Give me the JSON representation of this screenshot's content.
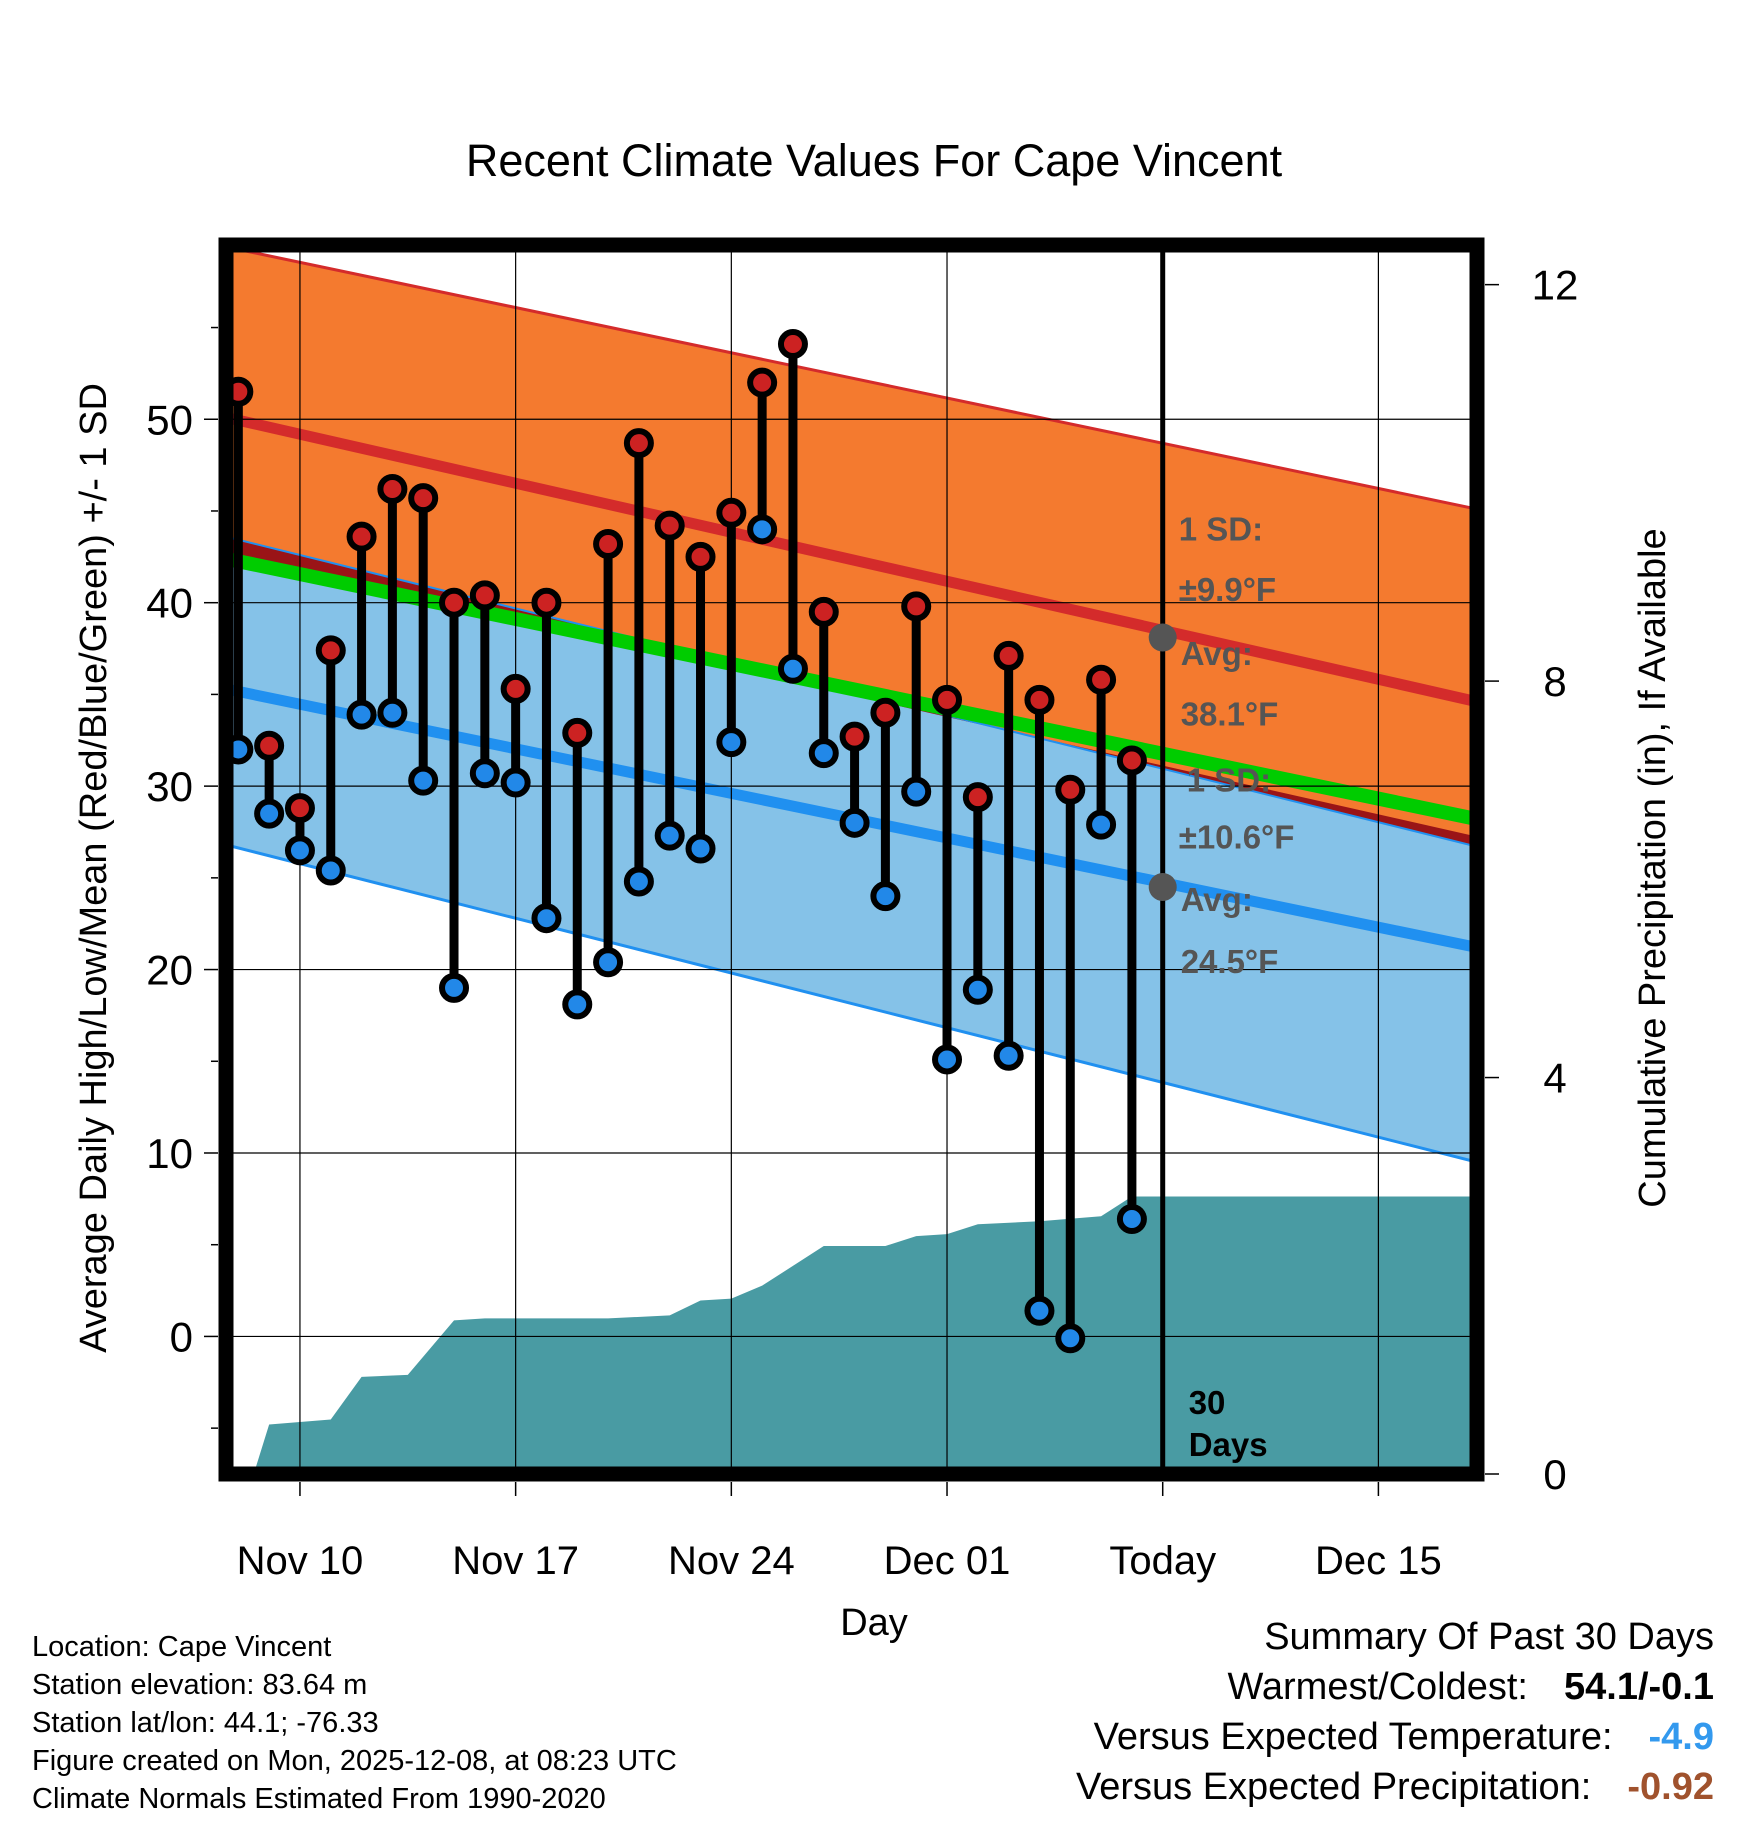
{
  "colors": {
    "high_band": "#f47a2f",
    "high_line": "#d42b2b",
    "mean_band": "#9a1417",
    "mean_line": "#00cc00",
    "low_band": "#85c2e8",
    "low_line": "#2090f0",
    "precip_fill": "#499ba3",
    "high_dot": "#cc2222",
    "low_dot": "#2288e8",
    "cold_anomaly": "#3399ee",
    "dry_anomaly": "#a0522d"
  },
  "chart_data": {
    "type": "line",
    "title": "Recent Climate Values For Cape Vincent",
    "xlabel": "Day",
    "ylabel": "Average Daily High/Low/Mean (Red/Blue/Green) +/- 1 SD",
    "y2label": "Cumulative Precipitation (in), If Available",
    "x_range_days": [
      -30.4,
      10.2
    ],
    "x_ticks": [
      {
        "day": -28,
        "label": "Nov 10"
      },
      {
        "day": -21,
        "label": "Nov 17"
      },
      {
        "day": -14,
        "label": "Nov 24"
      },
      {
        "day": -7,
        "label": "Dec 01"
      },
      {
        "day": 0,
        "label": "Today"
      },
      {
        "day": 7,
        "label": "Dec 15"
      }
    ],
    "ylim": [
      -7.5,
      59.5
    ],
    "y_ticks": [
      0,
      10,
      20,
      30,
      40,
      50
    ],
    "y2lim": [
      0,
      12.4
    ],
    "y2_ticks": [
      0,
      4,
      8,
      12
    ],
    "normal_high": {
      "start": 50.1,
      "end": 34.6,
      "sd_upper_start": 59.4,
      "sd_upper_end": 45.1,
      "sd_lower_start": 43.6,
      "sd_lower_end": 26.7
    },
    "normal_mean": {
      "start": 42.4,
      "end": 28.2
    },
    "normal_low": {
      "start": 35.3,
      "end": 21.2,
      "sd_upper_start": 43.6,
      "sd_upper_end": 26.7,
      "sd_lower_start": 26.8,
      "sd_lower_end": 9.5
    },
    "observations": [
      {
        "day": -30,
        "high": 51.5,
        "low": 32.0
      },
      {
        "day": -29,
        "high": 32.2,
        "low": 28.5
      },
      {
        "day": -28,
        "high": 28.8,
        "low": 26.5
      },
      {
        "day": -27,
        "high": 37.4,
        "low": 25.4
      },
      {
        "day": -26,
        "high": 43.6,
        "low": 33.9
      },
      {
        "day": -25,
        "high": 46.2,
        "low": 34.0
      },
      {
        "day": -24,
        "high": 45.7,
        "low": 30.3
      },
      {
        "day": -23,
        "high": 40.0,
        "low": 19.0
      },
      {
        "day": -22,
        "high": 40.4,
        "low": 30.7
      },
      {
        "day": -21,
        "high": 35.3,
        "low": 30.2
      },
      {
        "day": -20,
        "high": 40.0,
        "low": 22.8
      },
      {
        "day": -19,
        "high": 32.9,
        "low": 18.1
      },
      {
        "day": -18,
        "high": 43.2,
        "low": 20.4
      },
      {
        "day": -17,
        "high": 48.7,
        "low": 24.8
      },
      {
        "day": -16,
        "high": 44.2,
        "low": 27.3
      },
      {
        "day": -15,
        "high": 42.5,
        "low": 26.6
      },
      {
        "day": -14,
        "high": 44.9,
        "low": 32.4
      },
      {
        "day": -13,
        "high": 52.0,
        "low": 44.0
      },
      {
        "day": -12,
        "high": 54.1,
        "low": 36.4
      },
      {
        "day": -11,
        "high": 39.5,
        "low": 31.8
      },
      {
        "day": -10,
        "high": 32.7,
        "low": 28.0
      },
      {
        "day": -9,
        "high": 34.0,
        "low": 24.0
      },
      {
        "day": -8,
        "high": 39.8,
        "low": 29.7
      },
      {
        "day": -7,
        "high": 34.7,
        "low": 15.1
      },
      {
        "day": -6,
        "high": 29.4,
        "low": 18.9
      },
      {
        "day": -5,
        "high": 37.1,
        "low": 15.3
      },
      {
        "day": -4,
        "high": 34.7,
        "low": 1.4
      },
      {
        "day": -3,
        "high": 29.8,
        "low": -0.1
      },
      {
        "day": -2,
        "high": 35.8,
        "low": 27.9
      },
      {
        "day": -1,
        "high": 31.4,
        "low": 6.4
      }
    ],
    "cumulative_precip": [
      {
        "day": -30.4,
        "value": 0.0
      },
      {
        "day": -29.5,
        "value": 0.0
      },
      {
        "day": -29.0,
        "value": 0.5
      },
      {
        "day": -27.0,
        "value": 0.55
      },
      {
        "day": -26.0,
        "value": 0.98
      },
      {
        "day": -24.5,
        "value": 1.0
      },
      {
        "day": -23.0,
        "value": 1.55
      },
      {
        "day": -22.0,
        "value": 1.57
      },
      {
        "day": -18.0,
        "value": 1.57
      },
      {
        "day": -16.0,
        "value": 1.6
      },
      {
        "day": -15.0,
        "value": 1.75
      },
      {
        "day": -14.0,
        "value": 1.77
      },
      {
        "day": -13.0,
        "value": 1.9
      },
      {
        "day": -11.0,
        "value": 2.3
      },
      {
        "day": -9.0,
        "value": 2.3
      },
      {
        "day": -8.0,
        "value": 2.4
      },
      {
        "day": -7.0,
        "value": 2.42
      },
      {
        "day": -6.0,
        "value": 2.52
      },
      {
        "day": -4.0,
        "value": 2.55
      },
      {
        "day": -2.0,
        "value": 2.6
      },
      {
        "day": -1.0,
        "value": 2.8
      },
      {
        "day": 10.2,
        "value": 2.8
      }
    ],
    "today_high_avg": {
      "day": 0,
      "value": 38.1
    },
    "today_low_avg": {
      "day": 0,
      "value": 24.5
    },
    "annotations": {
      "high_sd_line1": "1 SD:",
      "high_sd_line2": "±9.9°F",
      "high_avg_line1": "Avg:",
      "high_avg_line2": "38.1°F",
      "low_sd_line1": "1 SD:",
      "low_sd_line2": "±10.6°F",
      "low_avg_line1": "Avg:",
      "low_avg_line2": "24.5°F",
      "days_line1": "30",
      "days_line2": "Days"
    }
  },
  "info": {
    "location": "Location: Cape Vincent",
    "elevation": "Station elevation: 83.64 m",
    "latlon": "Station lat/lon: 44.1; -76.33",
    "created": "Figure created on Mon, 2025-12-08, at 08:23 UTC",
    "normals": "Climate Normals Estimated From 1990-2020"
  },
  "summary": {
    "title": "Summary Of Past 30 Days",
    "warm_cold_label": "Warmest/Coldest:",
    "warm_cold_value": "54.1/-0.1",
    "temp_label": "Versus Expected Temperature:",
    "temp_value": "-4.9",
    "precip_label": "Versus Expected Precipitation:",
    "precip_value": "-0.92"
  }
}
